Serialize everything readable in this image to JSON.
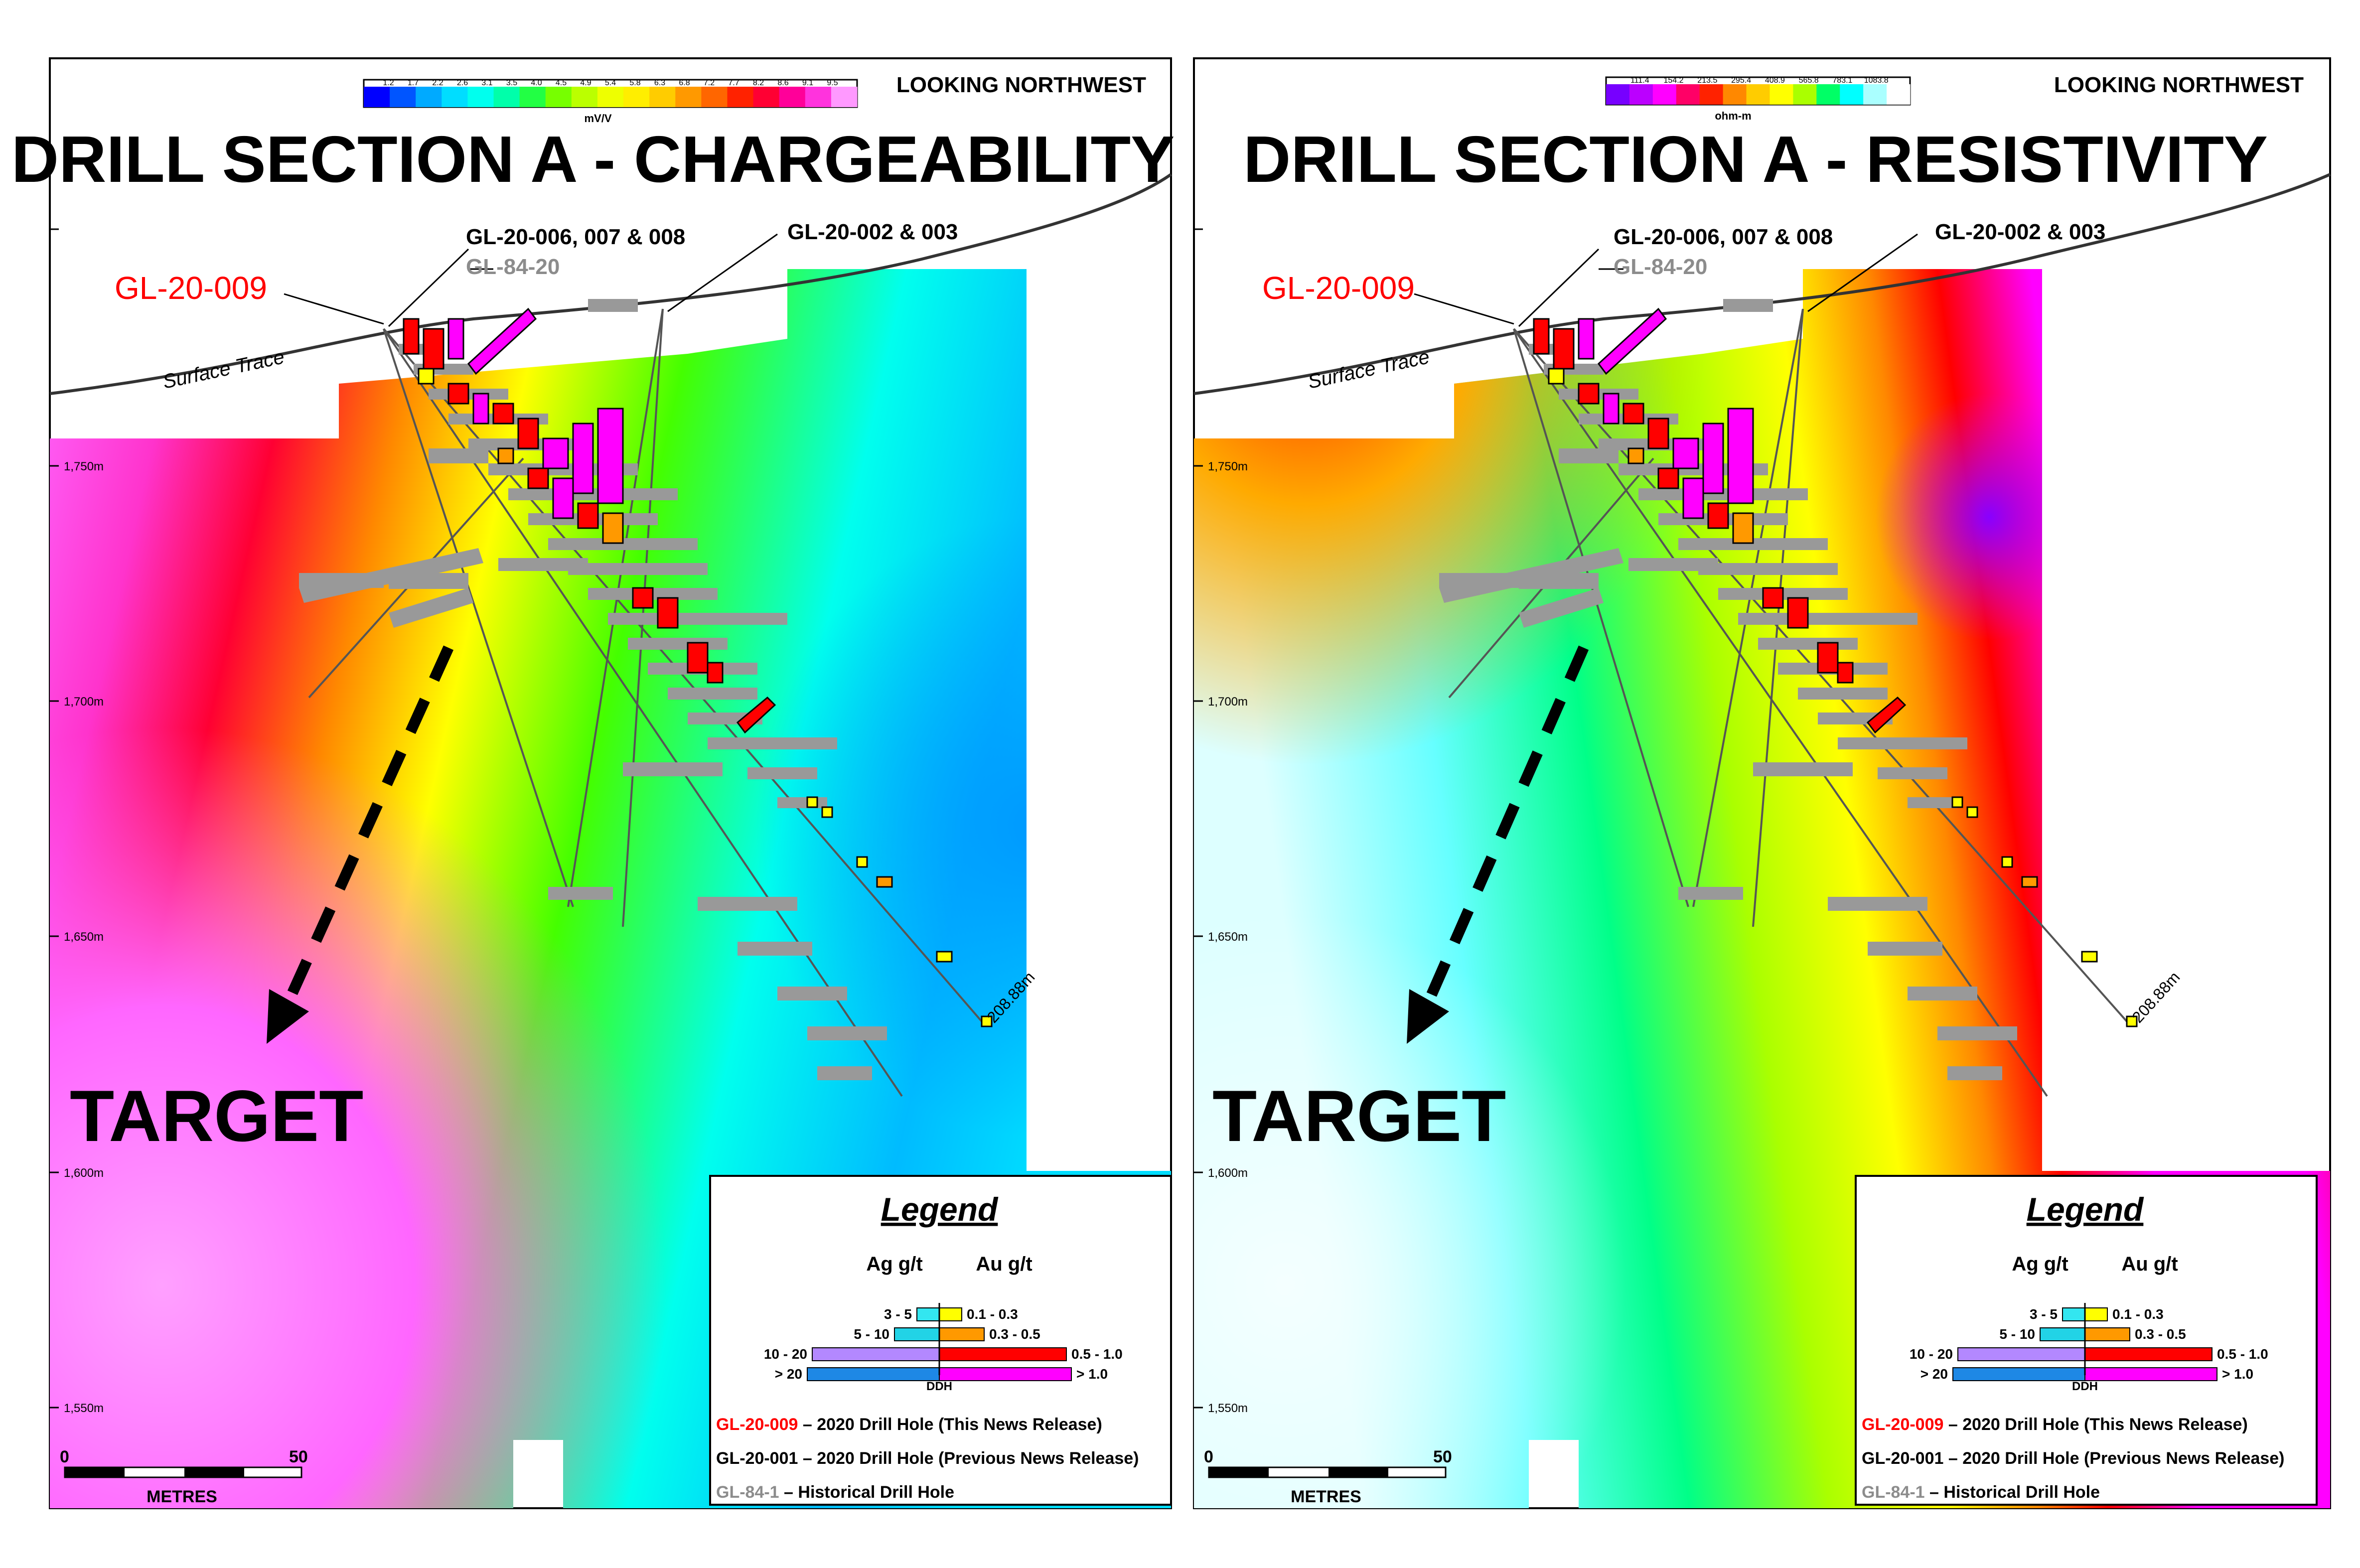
{
  "panels": [
    {
      "id": "chargeability",
      "title": "DRILL SECTION A - CHARGEABILITY",
      "view": "LOOKING NORTHWEST",
      "colorbar": {
        "unit": "mV/V",
        "ticks": [
          "1.2",
          "1.7",
          "2.2",
          "2.6",
          "3.1",
          "3.5",
          "4.0",
          "4.5",
          "4.9",
          "5.4",
          "5.8",
          "6.3",
          "6.8",
          "7.2",
          "7.7",
          "8.2",
          "8.6",
          "9.1",
          "9.5"
        ],
        "colors": [
          "#0000ff",
          "#0055ff",
          "#00aaff",
          "#00ddff",
          "#00ffee",
          "#00ffaa",
          "#22ff44",
          "#77ff00",
          "#bbff00",
          "#eeff00",
          "#ffee00",
          "#ffcc00",
          "#ff9900",
          "#ff6600",
          "#ff2200",
          "#ff0033",
          "#ff0099",
          "#ff33dd",
          "#ff99ff"
        ]
      },
      "target_label": "TARGET"
    },
    {
      "id": "resistivity",
      "title": "DRILL SECTION A - RESISTIVITY",
      "view": "LOOKING NORTHWEST",
      "colorbar": {
        "unit": "ohm-m",
        "ticks": [
          "111.4",
          "154.2",
          "213.5",
          "295.4",
          "408.9",
          "565.8",
          "783.1",
          "1083.8"
        ],
        "colors": [
          "#7700ff",
          "#bb00ff",
          "#ff00ff",
          "#ff0066",
          "#ff2200",
          "#ff8800",
          "#ffcc00",
          "#ffff00",
          "#aaff00",
          "#00ff66",
          "#00ffff",
          "#aaffff",
          "#ffffff"
        ]
      },
      "target_label": "TARGET"
    }
  ],
  "hole_labels": {
    "new_hole": "GL-20-009",
    "group_006": "GL-20-006, 007 & 008",
    "historical_84_20": "GL-84-20",
    "group_002": "GL-20-002 & 003",
    "surface": "Surface Trace",
    "depth": "208.88m"
  },
  "elevation_labels": [
    "1,750m",
    "1,700m",
    "1,650m",
    "1,600m",
    "1,550m"
  ],
  "scale_bar": {
    "start": "0",
    "end": "50",
    "unit": "METRES"
  },
  "legend": {
    "title": "Legend",
    "ag_header": "Ag g/t",
    "au_header": "Au g/t",
    "ag_ranges": [
      "3 - 5",
      "5 - 10",
      "10 - 20",
      "> 20"
    ],
    "au_ranges": [
      "0.1 - 0.3",
      "0.3 - 0.5",
      "0.5 - 1.0",
      "> 1.0"
    ],
    "ag_colors": [
      "#33e6f0",
      "#22d3e6",
      "#b388ff",
      "#1e88e5"
    ],
    "au_colors": [
      "#ffff00",
      "#ff9900",
      "#ff0000",
      "#ff00ff"
    ],
    "ddh_label": "DDH",
    "entries": [
      {
        "code": "GL-20-009",
        "text": " – 2020 Drill Hole (This News Release)",
        "color": "#ff0000"
      },
      {
        "code": "GL-20-001",
        "text": " – 2020 Drill Hole (Previous News Release)",
        "color": "#000000"
      },
      {
        "code": "GL-84-1",
        "text": " – Historical Drill Hole",
        "color": "#8c8c8c"
      }
    ]
  }
}
